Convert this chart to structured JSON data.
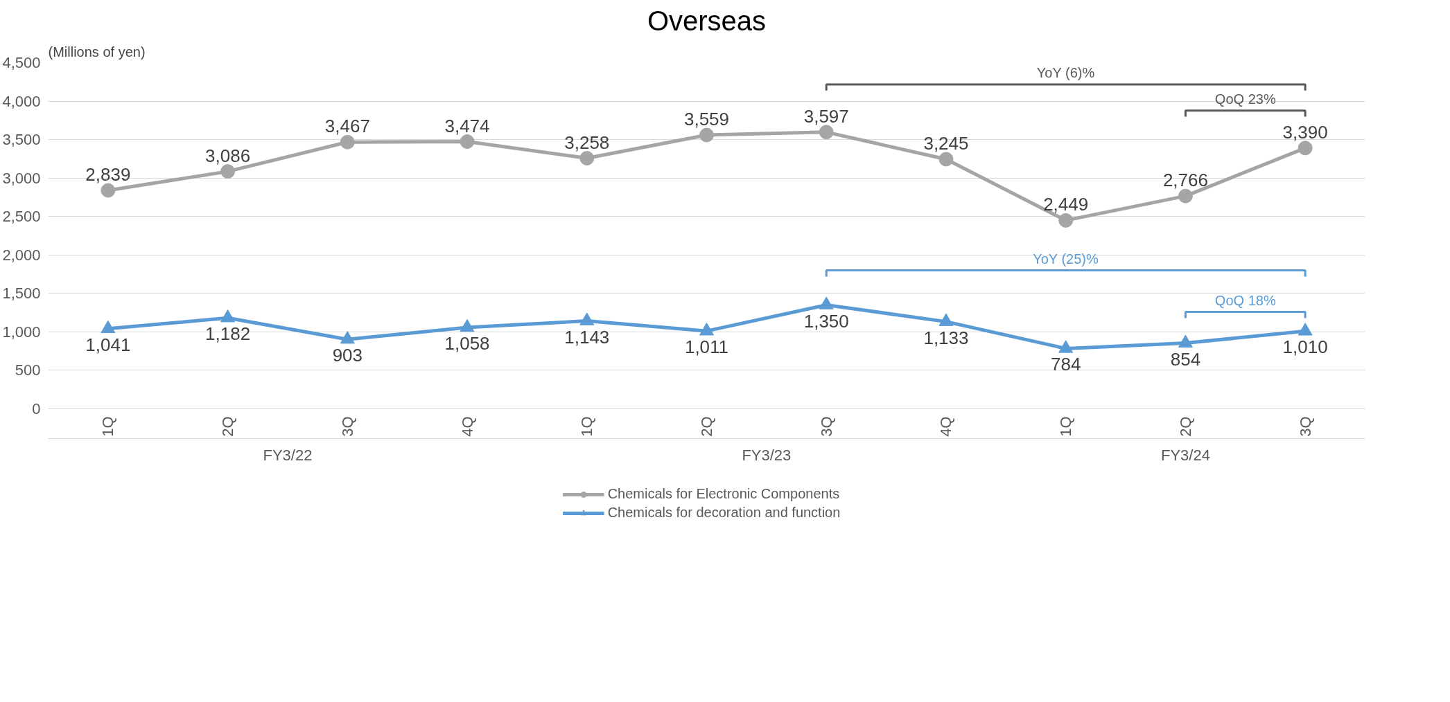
{
  "chart_data": {
    "type": "line",
    "title": "Overseas",
    "ylabel": "(Millions of yen)",
    "categories": [
      "1Q",
      "2Q",
      "3Q",
      "4Q",
      "1Q",
      "2Q",
      "3Q",
      "4Q",
      "1Q",
      "2Q",
      "3Q"
    ],
    "series": [
      {
        "name": "Chemicals for Electronic Components",
        "color": "#a5a5a5",
        "marker": "circle",
        "values": [
          2839,
          3086,
          3467,
          3474,
          3258,
          3559,
          3597,
          3245,
          2449,
          2766,
          3390
        ],
        "value_labels": [
          "2,839",
          "3,086",
          "3,467",
          "3,474",
          "3,258",
          "3,559",
          "3,597",
          "3,245",
          "2,449",
          "2,766",
          "3,390"
        ]
      },
      {
        "name": "Chemicals for decoration and function",
        "color": "#5b9bd5",
        "marker": "triangle",
        "values": [
          1041,
          1182,
          903,
          1058,
          1143,
          1011,
          1350,
          1133,
          784,
          854,
          1010
        ],
        "value_labels": [
          "1,041",
          "1,182",
          "903",
          "1,058",
          "1,143",
          "1,011",
          "1,350",
          "1,133",
          "784",
          "854",
          "1,010"
        ]
      }
    ],
    "ylim": [
      0,
      4500
    ],
    "yticks": [
      {
        "value": 0,
        "label": "0"
      },
      {
        "value": 500,
        "label": "500"
      },
      {
        "value": 1000,
        "label": "1,000"
      },
      {
        "value": 1500,
        "label": "1,500"
      },
      {
        "value": 2000,
        "label": "2,000"
      },
      {
        "value": 2500,
        "label": "2,500"
      },
      {
        "value": 3000,
        "label": "3,000"
      },
      {
        "value": 3500,
        "label": "3,500"
      },
      {
        "value": 4000,
        "label": "4,000"
      },
      {
        "value": 4500,
        "label": "4,500"
      }
    ],
    "grid": "y",
    "legend": "bottom",
    "line_style": "solid",
    "annotations": [
      "FY3/22",
      "FY3/23",
      "FY3/24",
      "YoY (6)%",
      "QoQ 23%",
      "YoY (25)%",
      "QoQ 18%"
    ]
  }
}
